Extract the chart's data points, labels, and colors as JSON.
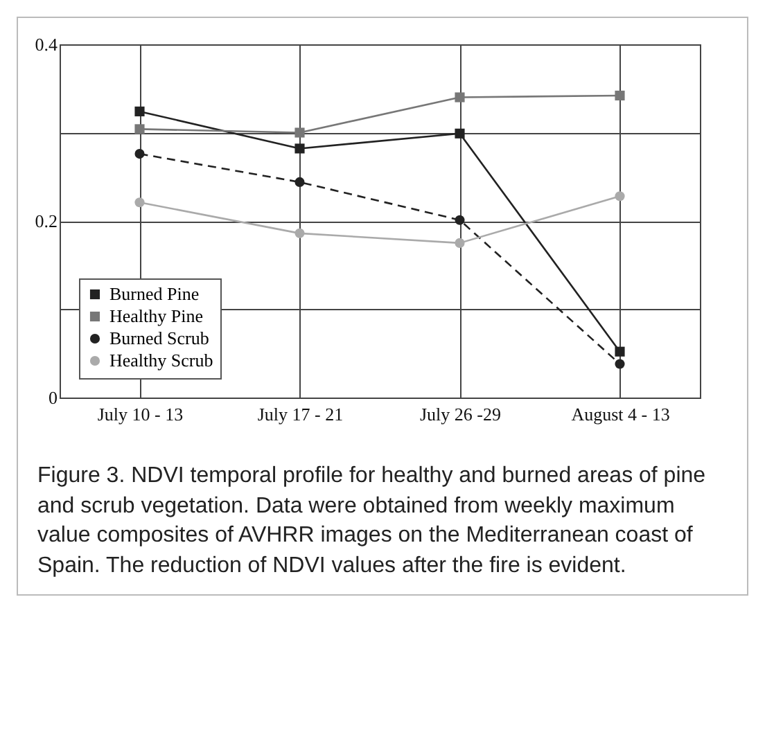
{
  "chart_data": {
    "type": "line",
    "categories": [
      "July 10 - 13",
      "July 17 - 21",
      "July 26 -29",
      "August 4 - 13"
    ],
    "series": [
      {
        "name": "Burned Pine",
        "color": "#222222",
        "marker": "square",
        "line_style": "solid",
        "values": [
          0.324,
          0.282,
          0.299,
          0.052
        ]
      },
      {
        "name": "Healthy Pine",
        "color": "#777777",
        "marker": "square",
        "line_style": "solid",
        "values": [
          0.304,
          0.3,
          0.34,
          0.342
        ]
      },
      {
        "name": "Burned Scrub",
        "color": "#222222",
        "marker": "circle",
        "line_style": "dashed",
        "values": [
          0.276,
          0.244,
          0.201,
          0.038
        ]
      },
      {
        "name": "Healthy Scrub",
        "color": "#aaaaaa",
        "marker": "circle",
        "line_style": "solid",
        "values": [
          0.221,
          0.186,
          0.175,
          0.228
        ]
      }
    ],
    "ylim": [
      0,
      0.4
    ],
    "yticks": [
      0,
      {
        "value": 0.1,
        "label": null
      },
      0.2,
      {
        "value": 0.3,
        "label": null
      },
      0.4
    ],
    "grid": true,
    "legend": "bottom left",
    "annotations": [
      "Figure 3. NDVI temporal profile for healthy and burned areas of pine and scrub vegetation. Data were obtained from weekly maximum value composites of AVHRR images on the Mediterranean coast of Spain. The reduction of NDVI values after the fire is evident."
    ]
  }
}
